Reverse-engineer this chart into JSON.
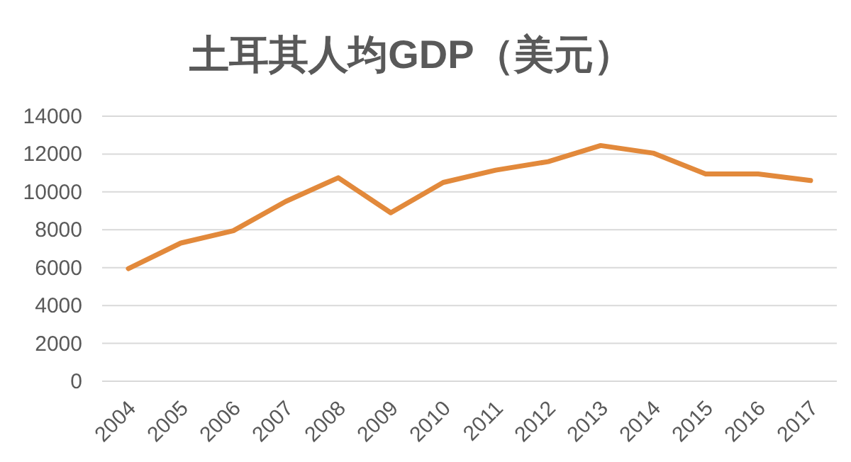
{
  "chart_data": {
    "type": "line",
    "title": "土耳其人均GDP（美元）",
    "categories": [
      "2004",
      "2005",
      "2006",
      "2007",
      "2008",
      "2009",
      "2010",
      "2011",
      "2012",
      "2013",
      "2014",
      "2015",
      "2016",
      "2017"
    ],
    "series": [
      {
        "color": "#e2893b",
        "values": [
          5950,
          7300,
          7950,
          9500,
          10750,
          8900,
          10500,
          11150,
          11600,
          12450,
          12050,
          10950,
          10950,
          10600
        ]
      }
    ],
    "ylim": [
      0,
      14000
    ],
    "yticks": [
      0,
      2000,
      4000,
      6000,
      8000,
      10000,
      12000,
      14000
    ],
    "grid": "y",
    "marker": "none",
    "line_style": "solid"
  }
}
